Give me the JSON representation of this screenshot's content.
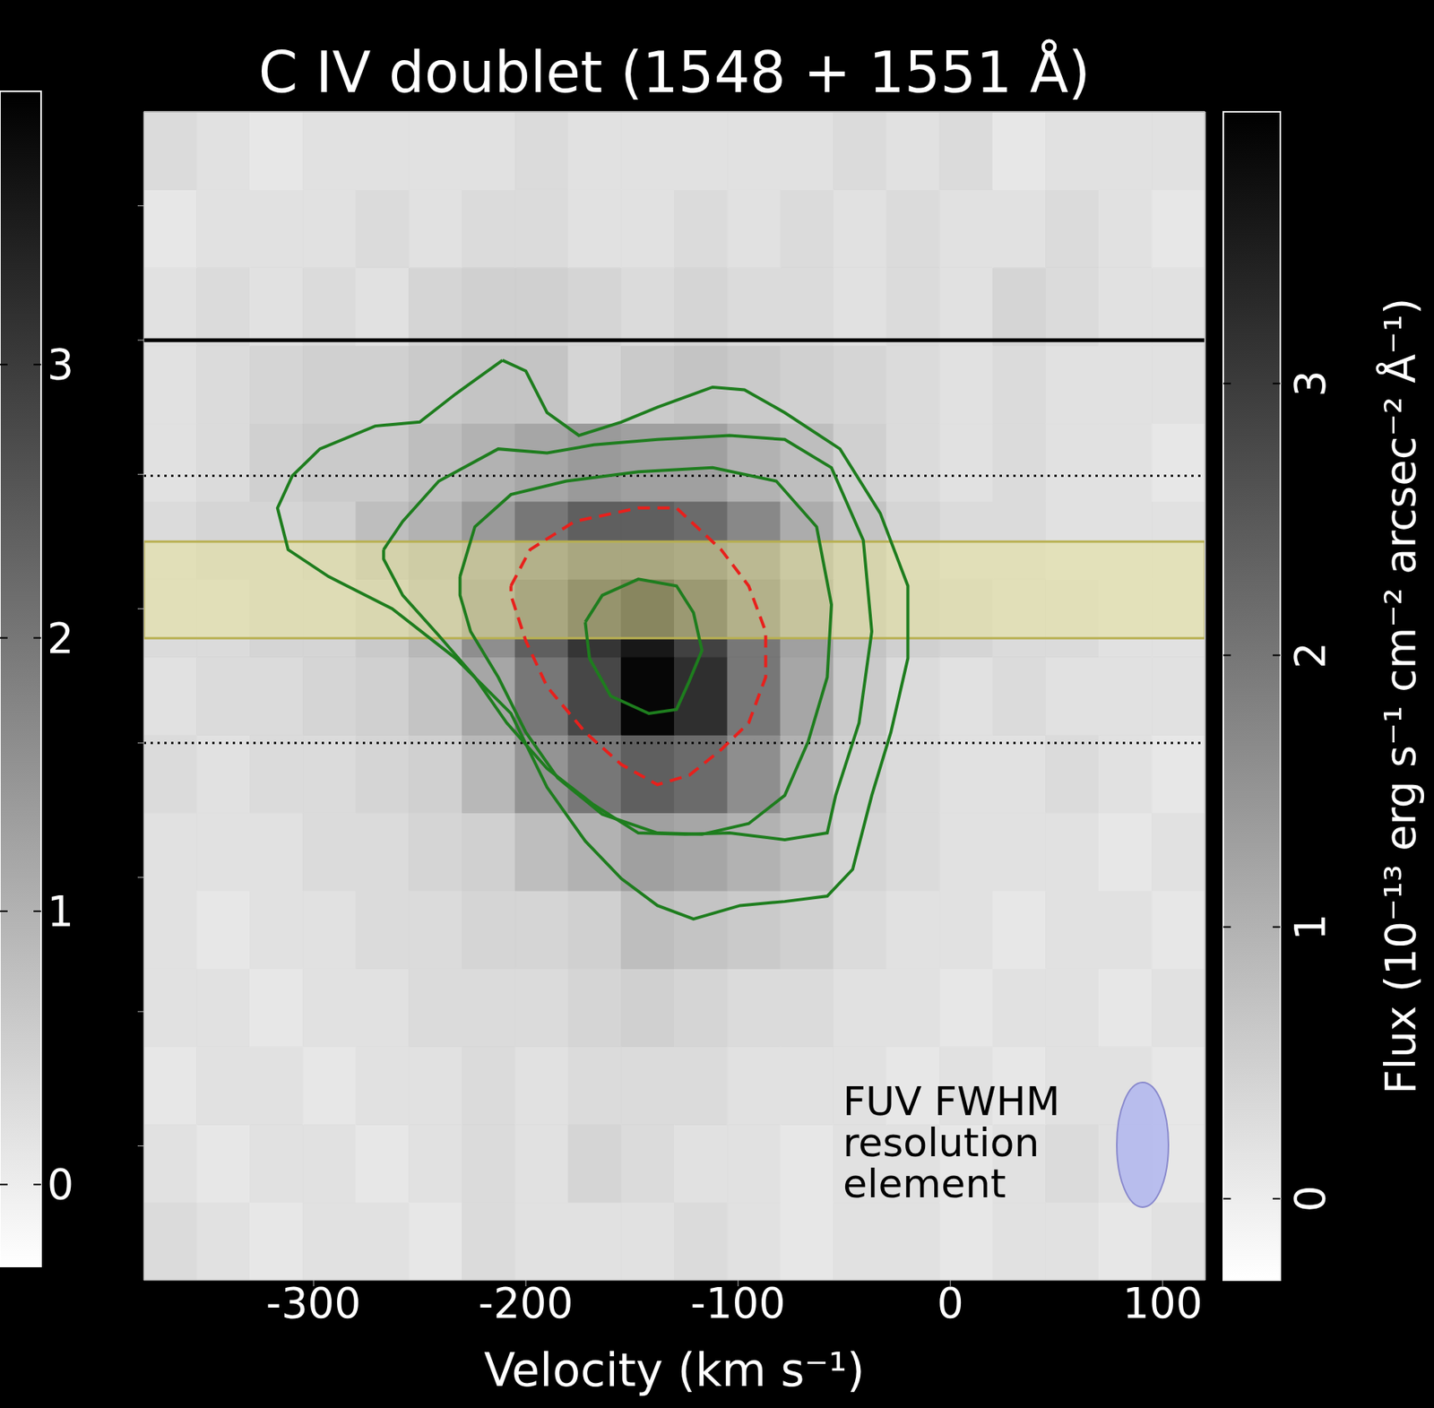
{
  "chart_data": {
    "type": "heatmap",
    "title": "C IV doublet (1548 + 1551 Å)",
    "x_label": "Velocity (km s⁻¹)",
    "colorbar_label": "Flux (10⁻¹³ erg s⁻¹ cm⁻² arcsec⁻² Å⁻¹)",
    "xlim": [
      -380,
      120
    ],
    "xticks": [
      -300,
      -200,
      -100,
      0,
      100
    ],
    "ylim": [
      0,
      8.7
    ],
    "yticks": [
      1,
      2,
      3,
      4,
      5,
      6,
      7,
      8
    ],
    "tick_labels": "x",
    "x_edges": [
      -380,
      -355,
      -330,
      -305,
      -280,
      -255,
      -230,
      -205,
      -180,
      -155,
      -130,
      -105,
      -80,
      -55,
      -30,
      -5,
      20,
      45,
      70,
      95,
      120
    ],
    "y_edges": [
      0,
      0.58,
      1.16,
      1.74,
      2.32,
      2.9,
      3.48,
      4.06,
      4.64,
      5.22,
      5.8,
      6.38,
      6.96,
      7.54,
      8.12,
      8.7
    ],
    "cells": [
      [
        0.3,
        0.2,
        0.1,
        0.2,
        0.2,
        0.1,
        0.3,
        0.2,
        0.2,
        0.2,
        0.3,
        0.2,
        0.1,
        0.2,
        0.2,
        0.1,
        0.2,
        0.2,
        0.1,
        0.2
      ],
      [
        0.2,
        0.1,
        0.2,
        0.2,
        0.1,
        0.2,
        0.3,
        0.2,
        0.4,
        0.3,
        0.2,
        0.2,
        0.1,
        0.2,
        0.2,
        0.1,
        0.2,
        0.3,
        0.2,
        0.1
      ],
      [
        0.1,
        0.2,
        0.2,
        0.1,
        0.2,
        0.2,
        0.3,
        0.2,
        0.3,
        0.3,
        0.3,
        0.2,
        0.2,
        0.2,
        0.1,
        0.2,
        0.1,
        0.2,
        0.2,
        0.1
      ],
      [
        0.2,
        0.2,
        0.1,
        0.2,
        0.2,
        0.3,
        0.3,
        0.3,
        0.4,
        0.5,
        0.4,
        0.3,
        0.3,
        0.2,
        0.2,
        0.1,
        0.2,
        0.2,
        0.1,
        0.2
      ],
      [
        0.2,
        0.1,
        0.2,
        0.2,
        0.3,
        0.3,
        0.4,
        0.4,
        0.5,
        0.8,
        0.7,
        0.6,
        0.5,
        0.3,
        0.2,
        0.2,
        0.1,
        0.2,
        0.2,
        0.1
      ],
      [
        0.2,
        0.2,
        0.2,
        0.3,
        0.3,
        0.4,
        0.5,
        0.8,
        1.0,
        1.3,
        1.2,
        1.0,
        0.8,
        0.4,
        0.3,
        0.2,
        0.2,
        0.2,
        0.1,
        0.2
      ],
      [
        0.3,
        0.2,
        0.3,
        0.3,
        0.4,
        0.5,
        0.9,
        1.5,
        2.0,
        2.4,
        2.2,
        1.6,
        1.0,
        0.5,
        0.3,
        0.2,
        0.2,
        0.3,
        0.2,
        0.1
      ],
      [
        0.2,
        0.3,
        0.3,
        0.4,
        0.5,
        0.7,
        1.2,
        2.0,
        2.8,
        3.9,
        3.2,
        2.0,
        1.2,
        0.6,
        0.3,
        0.2,
        0.3,
        0.2,
        0.2,
        0.2
      ],
      [
        0.3,
        0.3,
        0.4,
        0.4,
        0.6,
        0.9,
        1.6,
        2.4,
        3.1,
        3.6,
        2.9,
        2.0,
        1.3,
        0.7,
        0.5,
        0.4,
        0.3,
        0.3,
        0.2,
        0.2
      ],
      [
        0.3,
        0.4,
        0.4,
        0.5,
        0.8,
        1.0,
        1.4,
        2.0,
        2.4,
        2.4,
        2.2,
        1.7,
        1.1,
        0.7,
        0.4,
        0.3,
        0.3,
        0.2,
        0.2,
        0.2
      ],
      [
        0.2,
        0.3,
        0.5,
        0.6,
        0.6,
        0.8,
        1.0,
        1.2,
        1.4,
        1.3,
        1.3,
        1.0,
        0.8,
        0.5,
        0.3,
        0.2,
        0.3,
        0.2,
        0.2,
        0.1
      ],
      [
        0.2,
        0.3,
        0.4,
        0.5,
        0.5,
        0.6,
        0.7,
        0.7,
        0.4,
        0.6,
        0.7,
        0.6,
        0.5,
        0.4,
        0.3,
        0.2,
        0.3,
        0.2,
        0.2,
        0.2
      ],
      [
        0.2,
        0.3,
        0.2,
        0.3,
        0.2,
        0.4,
        0.5,
        0.5,
        0.4,
        0.3,
        0.4,
        0.3,
        0.3,
        0.2,
        0.3,
        0.2,
        0.4,
        0.3,
        0.2,
        0.2
      ],
      [
        0.1,
        0.2,
        0.2,
        0.2,
        0.3,
        0.2,
        0.3,
        0.3,
        0.2,
        0.2,
        0.3,
        0.2,
        0.3,
        0.2,
        0.3,
        0.2,
        0.2,
        0.3,
        0.2,
        0.1
      ],
      [
        0.3,
        0.2,
        0.1,
        0.2,
        0.2,
        0.2,
        0.2,
        0.3,
        0.2,
        0.2,
        0.2,
        0.2,
        0.2,
        0.3,
        0.2,
        0.3,
        0.1,
        0.2,
        0.2,
        0.2
      ]
    ],
    "colorbar": {
      "clim": [
        -0.3,
        4.0
      ],
      "ticks": [
        0,
        1,
        2,
        3
      ]
    },
    "left_colorbar": {
      "clim": [
        -0.3,
        4.0
      ],
      "ticks": [
        0,
        1,
        2,
        3
      ]
    },
    "hlines": [
      {
        "y": 7.0,
        "color": "#000000",
        "line_style": "solid"
      },
      {
        "y": 5.99,
        "color": "#000000",
        "line_style": "dotted"
      },
      {
        "y": 4.0,
        "color": "#000000",
        "line_style": "dotted"
      }
    ],
    "band": {
      "y": [
        4.78,
        5.5
      ],
      "color": "#e6e29a"
    },
    "contours": [
      {
        "color": "#1e7d1e",
        "line_style": "solid",
        "x": [
          -211,
          -200,
          -190,
          -175,
          -155,
          -138,
          -112,
          -97,
          -78,
          -52,
          -33,
          -20,
          -20,
          -28,
          -37,
          -46,
          -58,
          -78,
          -99,
          -121,
          -138,
          -155,
          -172,
          -190,
          -207,
          -233,
          -263,
          -293,
          -312,
          -317,
          -310,
          -297,
          -271,
          -250,
          -233
        ],
        "y": [
          6.85,
          6.77,
          6.46,
          6.29,
          6.39,
          6.5,
          6.65,
          6.63,
          6.46,
          6.19,
          5.71,
          5.17,
          4.63,
          4.08,
          3.61,
          3.06,
          2.86,
          2.82,
          2.79,
          2.69,
          2.79,
          2.99,
          3.27,
          3.67,
          4.22,
          4.63,
          5.0,
          5.24,
          5.44,
          5.75,
          5.99,
          6.19,
          6.36,
          6.39,
          6.6
        ]
      },
      {
        "color": "#1e7d1e",
        "line_style": "solid",
        "x": [
          -267,
          -258,
          -241,
          -213,
          -190,
          -168,
          -138,
          -104,
          -78,
          -56,
          -41,
          -37,
          -43,
          -54,
          -58,
          -78,
          -104,
          -125,
          -147,
          -168,
          -190,
          -209,
          -224,
          -241,
          -258,
          -267
        ],
        "y": [
          5.44,
          5.65,
          5.95,
          6.19,
          6.16,
          6.22,
          6.26,
          6.29,
          6.26,
          6.05,
          5.51,
          4.83,
          4.15,
          3.61,
          3.33,
          3.28,
          3.33,
          3.32,
          3.33,
          3.54,
          3.81,
          4.15,
          4.49,
          4.8,
          5.1,
          5.37
        ]
      },
      {
        "color": "#1e7d1e",
        "line_style": "solid",
        "x": [
          -231,
          -224,
          -207,
          -181,
          -147,
          -112,
          -82,
          -63,
          -56,
          -58,
          -67,
          -78,
          -95,
          -117,
          -138,
          -164,
          -185,
          -200,
          -213,
          -226,
          -231
        ],
        "y": [
          5.24,
          5.61,
          5.85,
          5.95,
          6.02,
          6.05,
          5.95,
          5.61,
          5.03,
          4.49,
          4.01,
          3.61,
          3.4,
          3.32,
          3.33,
          3.47,
          3.74,
          4.08,
          4.49,
          4.83,
          5.1
        ]
      },
      {
        "color": "#1e7d1e",
        "line_style": "solid",
        "x": [
          -172,
          -164,
          -147,
          -129,
          -121,
          -117,
          -123,
          -129,
          -142,
          -160,
          -170
        ],
        "y": [
          4.9,
          5.1,
          5.22,
          5.17,
          4.97,
          4.69,
          4.46,
          4.25,
          4.22,
          4.35,
          4.63
        ]
      },
      {
        "color": "#e8201c",
        "line_style": "dashed",
        "x": [
          -207,
          -198,
          -177,
          -147,
          -129,
          -108,
          -95,
          -87,
          -87,
          -95,
          -108,
          -123,
          -138,
          -155,
          -172,
          -190,
          -200,
          -207
        ],
        "y": [
          5.17,
          5.44,
          5.65,
          5.75,
          5.75,
          5.44,
          5.17,
          4.83,
          4.49,
          4.15,
          3.95,
          3.76,
          3.69,
          3.84,
          4.08,
          4.42,
          4.76,
          5.1
        ]
      }
    ],
    "annotation": [
      "FUV FWHM",
      "resolution",
      "element"
    ]
  }
}
